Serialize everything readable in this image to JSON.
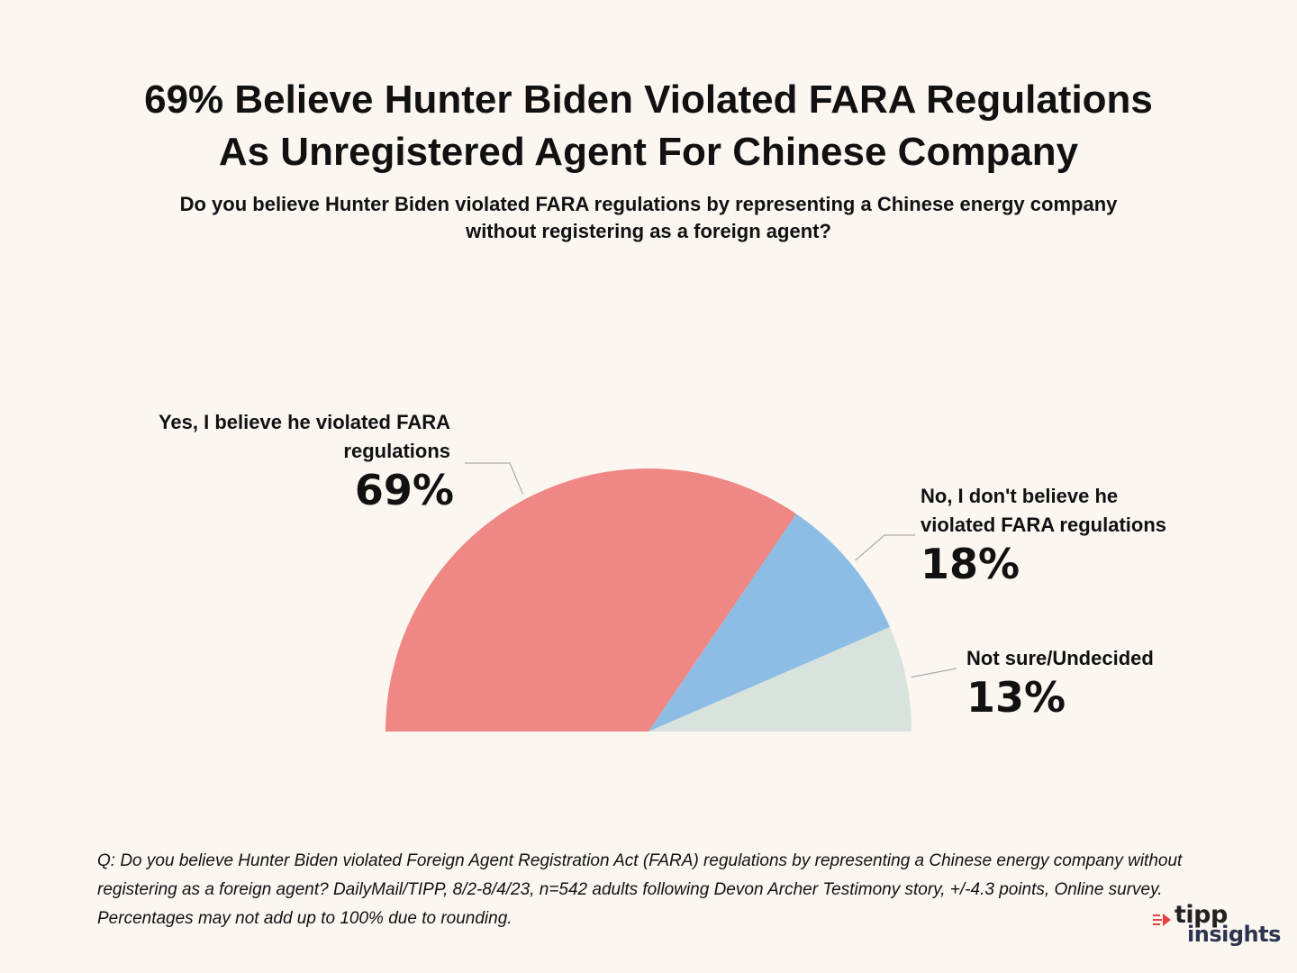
{
  "chart_data": {
    "type": "pie",
    "title": "69% Believe Hunter Biden Violated FARA Regulations",
    "title_line2": "As Unregistered Agent For Chinese Company",
    "subtitle": "Do you believe Hunter Biden violated FARA regulations by representing a Chinese energy company",
    "subtitle_line2": "without registering as a foreign agent?",
    "shape": "half-donut",
    "slices": [
      {
        "label": "Yes, I believe he violated FARA regulations",
        "label_line1": "Yes, I believe he violated FARA",
        "label_line2": "regulations",
        "value": 69,
        "value_label": "69%",
        "color": "#ef8784"
      },
      {
        "label": "No, I don't believe he violated FARA regulations",
        "label_line1": "No, I don't believe he",
        "label_line2": "violated FARA regulations",
        "value": 18,
        "value_label": "18%",
        "color": "#8dbde4"
      },
      {
        "label": "Not sure/Undecided",
        "label_line1": "Not sure/Undecided",
        "label_line2": "",
        "value": 13,
        "value_label": "13%",
        "color": "#d8e3dd"
      }
    ]
  },
  "footnote": "Q: Do you believe Hunter Biden violated Foreign Agent Registration Act (FARA) regulations by representing a Chinese energy company without registering as a foreign agent? DailyMail/TIPP, 8/2-8/4/23, n=542 adults following Devon Archer Testimony story, +/-4.3 points, Online survey. Percentages may not add up to 100% due to rounding.",
  "logo": {
    "line1": "tipp",
    "line2": "insights",
    "accent_color": "#e8413c"
  }
}
